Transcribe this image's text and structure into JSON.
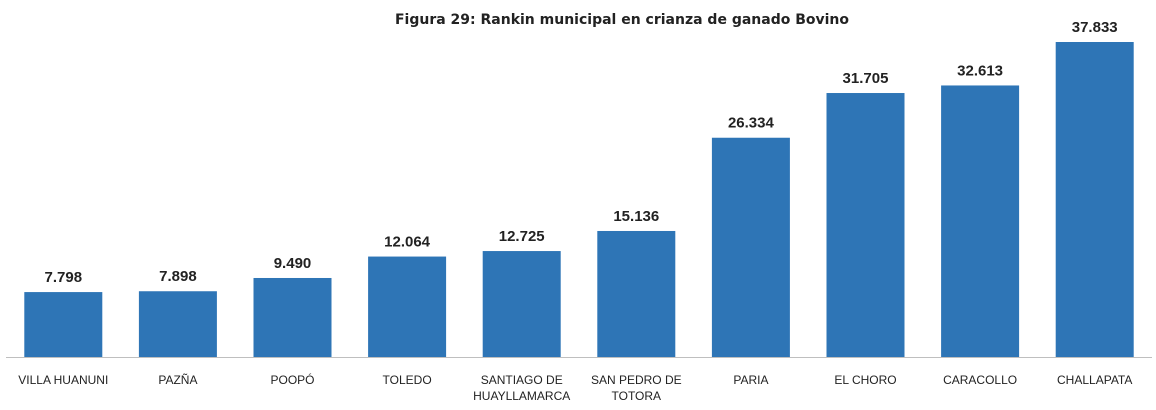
{
  "chart_data": {
    "type": "bar",
    "title": "Figura 29: Rankin municipal en crianza de ganado Bovino",
    "categories": [
      "VILLA HUANUNI",
      "PAZÑA",
      "POOPÓ",
      "TOLEDO",
      "SANTIAGO DE HUAYLLAMARCA",
      "SAN PEDRO DE TOTORA",
      "PARIA",
      "EL CHORO",
      "CARACOLLO",
      "CHALLAPATA"
    ],
    "values": [
      7798,
      7898,
      9490,
      12064,
      12725,
      15136,
      26334,
      31705,
      32613,
      37833
    ],
    "value_labels": [
      "7.798",
      "7.898",
      "9.490",
      "12.064",
      "12.725",
      "15.136",
      "26.334",
      "31.705",
      "32.613",
      "37.833"
    ],
    "color": "#2e75b6"
  }
}
